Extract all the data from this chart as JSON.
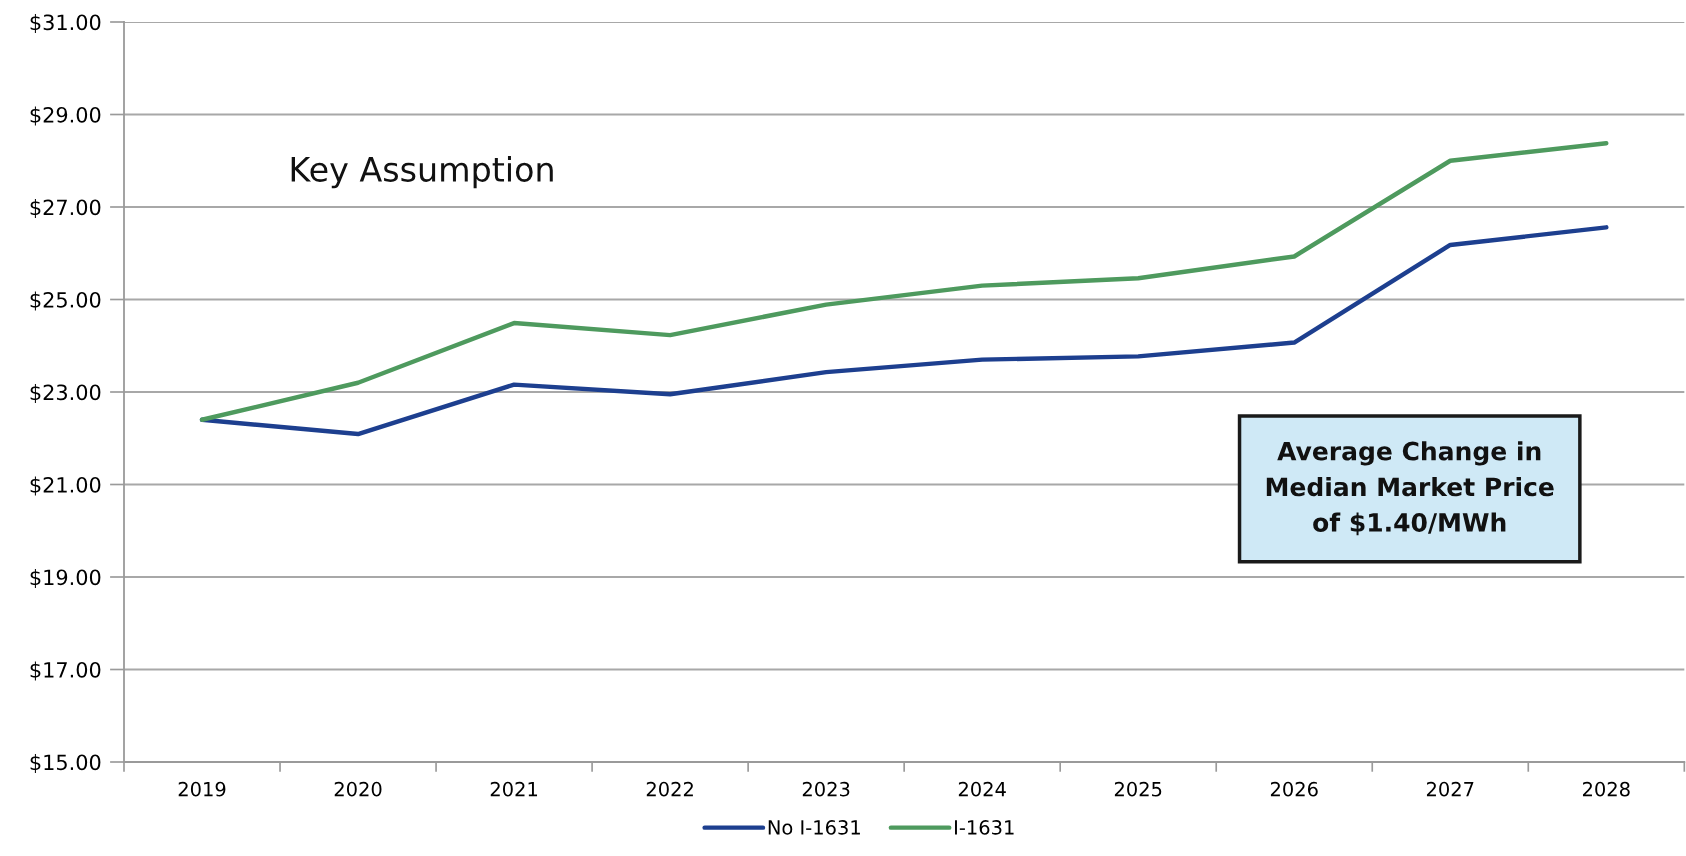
{
  "chart_data": {
    "type": "line",
    "categories": [
      "2019",
      "2020",
      "2021",
      "2022",
      "2023",
      "2024",
      "2025",
      "2026",
      "2027",
      "2028"
    ],
    "series": [
      {
        "name": "No I-1631",
        "color": "#1d3f8f",
        "values": [
          22.4,
          22.09,
          23.16,
          22.95,
          23.43,
          23.7,
          23.77,
          24.07,
          26.18,
          26.56
        ]
      },
      {
        "name": "I-1631",
        "color": "#4e9a5e",
        "values": [
          22.4,
          23.2,
          24.49,
          24.23,
          24.89,
          25.3,
          25.46,
          25.93,
          28.0,
          28.38
        ]
      }
    ],
    "ylim": [
      15,
      31
    ],
    "yticks": [
      {
        "value": 15,
        "label": "$15.00"
      },
      {
        "value": 17,
        "label": "$17.00"
      },
      {
        "value": 19,
        "label": "$19.00"
      },
      {
        "value": 21,
        "label": "$21.00"
      },
      {
        "value": 23,
        "label": "$23.00"
      },
      {
        "value": 25,
        "label": "$25.00"
      },
      {
        "value": 27,
        "label": "$27.00"
      },
      {
        "value": 29,
        "label": "$29.00"
      },
      {
        "value": 31,
        "label": "$31.00"
      }
    ],
    "grid": "y",
    "legend": "bottom",
    "marker": "none",
    "line_style": "solid",
    "annotations": [
      "Key Assumption",
      "Average Change in\nMedian Market Price\nof $1.40/MWh"
    ]
  }
}
